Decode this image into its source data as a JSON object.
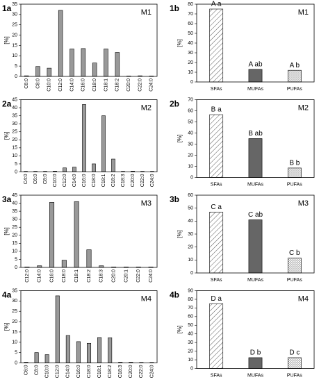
{
  "chart_data": [
    {
      "type": "bar",
      "panel_label": "1a",
      "annotation": "M1",
      "y_label": "[%]",
      "color": "#999999",
      "categories": [
        "C6:0",
        "C8:0",
        "C10:0",
        "C12:0",
        "C14:0",
        "C16:0",
        "C18:0",
        "C18:1",
        "C18:2",
        "C20:0",
        "C22:0",
        "C24:0"
      ],
      "values": [
        0.3,
        4.8,
        4,
        32,
        13.3,
        13.5,
        6.5,
        13.3,
        11.6,
        0.2,
        0.3,
        0.2
      ],
      "ylim": [
        0,
        35
      ],
      "yticks": [
        0,
        5,
        10,
        15,
        20,
        25,
        30,
        35
      ]
    },
    {
      "type": "bar",
      "panel_label": "1b",
      "annotation": "M1",
      "y_label": "[%]",
      "categories": [
        "SFAs",
        "MUFAs",
        "PUFAs"
      ],
      "values": [
        75,
        13,
        12
      ],
      "bar_labels": [
        "A a",
        "A ab",
        "A b"
      ],
      "patterns": [
        "hatch",
        "solid",
        "cross"
      ],
      "ylim": [
        0,
        80
      ],
      "yticks": [
        0,
        10,
        20,
        30,
        40,
        50,
        60,
        70,
        80
      ]
    },
    {
      "type": "bar",
      "panel_label": "2a",
      "annotation": "M2",
      "y_label": "[%]",
      "color": "#999999",
      "categories": [
        "C4:0",
        "C6:0",
        "C8:0",
        "C10:0",
        "C12:0",
        "C14:0",
        "C16:0",
        "C18:0",
        "C18:1",
        "C18:2",
        "C18:3",
        "C20:0",
        "C22:0",
        "C24:0"
      ],
      "values": [
        0.3,
        0.3,
        0.3,
        0.5,
        2.5,
        3,
        42,
        5,
        35,
        8,
        0.3,
        0.5,
        0.3,
        0.3
      ],
      "ylim": [
        0,
        45
      ],
      "yticks": [
        0,
        5,
        10,
        15,
        20,
        25,
        30,
        35,
        40,
        45
      ]
    },
    {
      "type": "bar",
      "panel_label": "2b",
      "annotation": "M2",
      "y_label": "[%]",
      "categories": [
        "SFAs",
        "MUFAs",
        "PUFAs"
      ],
      "values": [
        56.5,
        35,
        8.5
      ],
      "bar_labels": [
        "B a",
        "B ab",
        "B b"
      ],
      "patterns": [
        "hatch",
        "solid",
        "cross"
      ],
      "ylim": [
        0,
        70
      ],
      "yticks": [
        0,
        10,
        20,
        30,
        40,
        50,
        60,
        70
      ]
    },
    {
      "type": "bar",
      "panel_label": "3a",
      "annotation": "M3",
      "y_label": "[%]",
      "color": "#999999",
      "categories": [
        "C12:0",
        "C14:0",
        "C16:0",
        "C18:0",
        "C18:1",
        "C18:2",
        "C18:3",
        "C20:0",
        "C20:1",
        "C22:0",
        "C24:0"
      ],
      "values": [
        0.3,
        1,
        40.5,
        4.5,
        41,
        11,
        1,
        0.3,
        0.3,
        0.3,
        0.3
      ],
      "ylim": [
        0,
        45
      ],
      "yticks": [
        0,
        5,
        10,
        15,
        20,
        25,
        30,
        35,
        40,
        45
      ]
    },
    {
      "type": "bar",
      "panel_label": "3b",
      "annotation": "M3",
      "y_label": "[%]",
      "categories": [
        "SFAs",
        "MUFAs",
        "PUFAs"
      ],
      "values": [
        47,
        41,
        11.5
      ],
      "bar_labels": [
        "C a",
        "C ab",
        "C b"
      ],
      "patterns": [
        "hatch",
        "solid",
        "cross"
      ],
      "ylim": [
        0,
        60
      ],
      "yticks": [
        0,
        10,
        20,
        30,
        40,
        50,
        60
      ]
    },
    {
      "type": "bar",
      "panel_label": "4a",
      "annotation": "M4",
      "y_label": "[%]",
      "color": "#999999",
      "categories": [
        "C6:0",
        "C8:0",
        "C10:0",
        "C12:0",
        "C14:0",
        "C16:0",
        "C18:0",
        "C18:1",
        "C18:2",
        "C18:3",
        "C20:0",
        "C22:0",
        "C24:0"
      ],
      "values": [
        0.3,
        5,
        4,
        32.5,
        13.3,
        10.3,
        9.5,
        12.3,
        12.2,
        0.3,
        0.3,
        0.2,
        0.2
      ],
      "ylim": [
        0,
        35
      ],
      "yticks": [
        0,
        5,
        10,
        15,
        20,
        25,
        30,
        35
      ]
    },
    {
      "type": "bar",
      "panel_label": "4b",
      "annotation": "M4",
      "y_label": "[%]",
      "categories": [
        "SFAs",
        "MUFAs",
        "PUFAs"
      ],
      "values": [
        75,
        12.5,
        12.5
      ],
      "bar_labels": [
        "D a",
        "D b",
        "D c"
      ],
      "patterns": [
        "hatch",
        "solid",
        "cross"
      ],
      "ylim": [
        0,
        90
      ],
      "yticks": [
        0,
        10,
        20,
        30,
        40,
        50,
        60,
        70,
        80,
        90
      ]
    }
  ]
}
